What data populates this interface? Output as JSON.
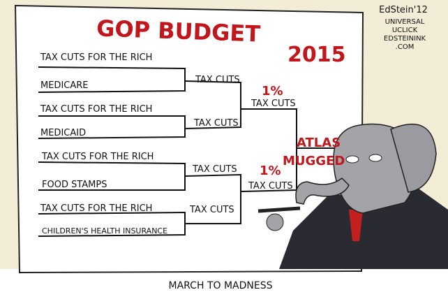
{
  "title": "GOP BUDGET",
  "year": "2015",
  "credit": {
    "signature": "EdStein'12",
    "lines": [
      "UNIVERSAL",
      "UCLICK",
      "EDSTEININK",
      ".COM"
    ]
  },
  "bracket": {
    "round1": [
      "TAX CUTS FOR THE RICH",
      "MEDICARE",
      "TAX CUTS FOR THE RICH",
      "MEDICAID",
      "TAX CUTS  FOR THE RICH",
      "FOOD STAMPS",
      "TAX CUTS FOR THE RICH",
      "CHILDREN'S HEALTH INSURANCE"
    ],
    "round2": [
      "TAX CUTS",
      "TAX CUTS",
      "TAX CUTS",
      "TAX CUTS"
    ],
    "round3": [
      {
        "note": "1%",
        "label": "TAX CUTS"
      },
      {
        "note": "1%",
        "label": "TAX CUTS"
      }
    ],
    "winner": [
      "ATLAS",
      "MUGGED"
    ]
  },
  "caption": "MARCH TO MADNESS"
}
